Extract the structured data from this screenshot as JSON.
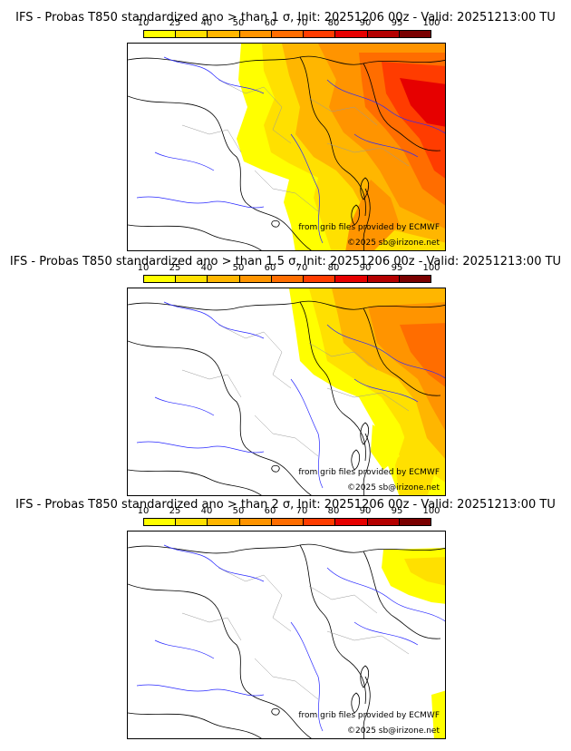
{
  "palette": [
    "#ffff00",
    "#ffe000",
    "#ffb600",
    "#ff9400",
    "#ff6d00",
    "#ff3c00",
    "#e60000",
    "#b40000",
    "#7a0000"
  ],
  "scale_ticks": [
    "10",
    "25",
    "40",
    "50",
    "60",
    "70",
    "80",
    "90",
    "95",
    "100"
  ],
  "credits": {
    "grib": "from grib files provided by ECMWF",
    "copyright": "©2025 sb@irizone.net"
  },
  "panels": [
    {
      "title": "IFS - Probas T850  standardized ano > than 1 σ, Init: 20251206 00z - Valid: 20251213:00 TU",
      "threshold_sigma": 1
    },
    {
      "title": "IFS - Probas T850  standardized ano > than 1.5 σ, Init: 20251206 00z - Valid: 20251213:00 TU",
      "threshold_sigma": 1.5
    },
    {
      "title": "IFS - Probas T850  standardized ano > than 2 σ, Init: 20251206 00z - Valid: 20251213:00 TU",
      "threshold_sigma": 2
    }
  ]
}
